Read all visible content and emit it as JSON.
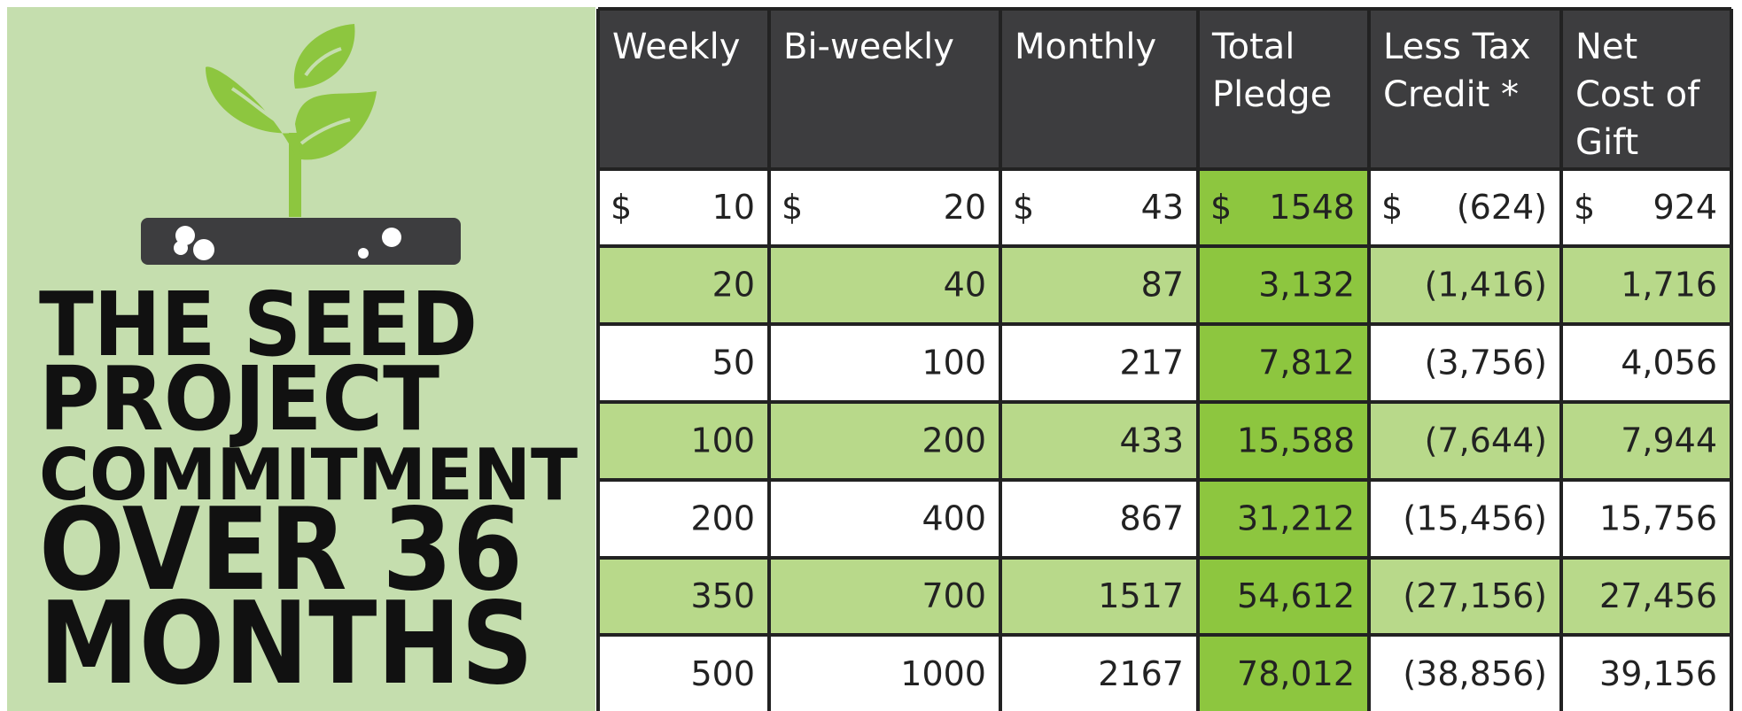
{
  "title": {
    "lines": [
      "THE SEED",
      "PROJECT",
      "COMMITMENT",
      "OVER 36",
      "MONTHS"
    ]
  },
  "table": {
    "headers": [
      [
        "Weekly"
      ],
      [
        "Bi-weekly"
      ],
      [
        "Monthly"
      ],
      [
        "Total",
        "Pledge"
      ],
      [
        "Less Tax",
        "Credit *"
      ],
      [
        "Net",
        "Cost of",
        "Gift"
      ]
    ],
    "rows": [
      [
        {
          "symbol": "$",
          "amount": "10"
        },
        {
          "symbol": "$",
          "amount": "20"
        },
        {
          "symbol": "$",
          "amount": "43"
        },
        {
          "symbol": "$",
          "amount": "1548"
        },
        {
          "symbol": "$",
          "amount": "(624)"
        },
        {
          "symbol": "$",
          "amount": "924"
        }
      ],
      [
        "20",
        "40",
        "87",
        "3,132",
        "(1,416)",
        "1,716"
      ],
      [
        "50",
        "100",
        "217",
        "7,812",
        "(3,756)",
        "4,056"
      ],
      [
        "100",
        "200",
        "433",
        "15,588",
        "(7,644)",
        "7,944"
      ],
      [
        "200",
        "400",
        "867",
        "31,212",
        "(15,456)",
        "15,756"
      ],
      [
        "350",
        "700",
        "1517",
        "54,612",
        "(27,156)",
        "27,456"
      ],
      [
        "500",
        "1000",
        "2167",
        "78,012",
        "(38,856)",
        "39,156"
      ]
    ]
  }
}
